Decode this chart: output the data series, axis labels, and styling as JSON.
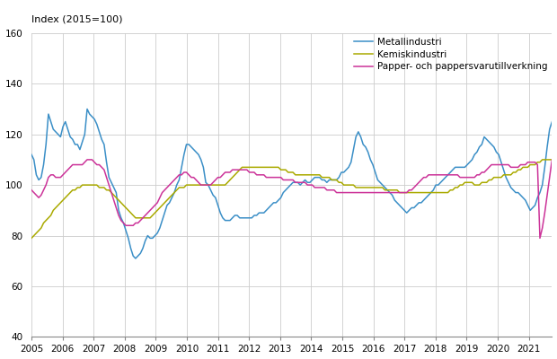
{
  "title": "Index (2015=100)",
  "ylim": [
    40,
    160
  ],
  "yticks": [
    40,
    60,
    80,
    100,
    120,
    140,
    160
  ],
  "legend_labels": [
    "Metallindustri",
    "Kemiskindustri",
    "Papper- och pappersvarutillverkning"
  ],
  "colors": [
    "#3B8FC7",
    "#AAAA00",
    "#CC3399"
  ],
  "linewidth": 1.1,
  "background_color": "#ffffff",
  "grid_color": "#cccccc",
  "xstart": 2005.0,
  "xend": 2021.75,
  "metal": [
    112,
    110,
    104,
    102,
    103,
    108,
    116,
    128,
    125,
    122,
    121,
    120,
    119,
    123,
    125,
    122,
    119,
    118,
    116,
    116,
    114,
    117,
    120,
    130,
    128,
    127,
    126,
    124,
    121,
    118,
    116,
    109,
    103,
    101,
    99,
    97,
    90,
    87,
    85,
    82,
    79,
    75,
    72,
    71,
    72,
    73,
    75,
    78,
    80,
    79,
    79,
    80,
    81,
    83,
    86,
    89,
    92,
    93,
    95,
    97,
    100,
    102,
    107,
    112,
    116,
    116,
    115,
    114,
    113,
    112,
    110,
    107,
    101,
    100,
    98,
    96,
    95,
    92,
    89,
    87,
    86,
    86,
    86,
    87,
    88,
    88,
    87,
    87,
    87,
    87,
    87,
    87,
    88,
    88,
    89,
    89,
    89,
    90,
    91,
    92,
    93,
    93,
    94,
    95,
    97,
    98,
    99,
    100,
    101,
    101,
    101,
    100,
    101,
    102,
    101,
    101,
    102,
    103,
    103,
    103,
    102,
    102,
    101,
    102,
    102,
    102,
    102,
    103,
    105,
    105,
    106,
    107,
    109,
    114,
    119,
    121,
    119,
    116,
    115,
    113,
    110,
    108,
    105,
    102,
    101,
    100,
    99,
    98,
    97,
    96,
    94,
    93,
    92,
    91,
    90,
    89,
    90,
    91,
    91,
    92,
    93,
    93,
    94,
    95,
    96,
    97,
    98,
    100,
    100,
    101,
    102,
    103,
    104,
    105,
    106,
    107,
    107,
    107,
    107,
    107,
    108,
    109,
    110,
    112,
    113,
    115,
    116,
    119,
    118,
    117,
    116,
    115,
    113,
    112,
    109,
    106,
    103,
    101,
    99,
    98,
    97,
    97,
    96,
    95,
    94,
    92,
    90,
    91,
    92,
    95,
    97,
    100,
    107,
    115,
    122,
    125
  ],
  "kemi": [
    79,
    80,
    81,
    82,
    83,
    85,
    86,
    87,
    88,
    90,
    91,
    92,
    93,
    94,
    95,
    96,
    97,
    98,
    98,
    99,
    99,
    100,
    100,
    100,
    100,
    100,
    100,
    100,
    99,
    99,
    99,
    98,
    98,
    97,
    96,
    95,
    94,
    93,
    92,
    91,
    90,
    89,
    88,
    87,
    87,
    87,
    87,
    87,
    87,
    87,
    88,
    89,
    90,
    91,
    92,
    93,
    94,
    95,
    96,
    97,
    98,
    99,
    99,
    99,
    100,
    100,
    100,
    100,
    100,
    100,
    100,
    100,
    100,
    100,
    100,
    100,
    100,
    100,
    100,
    100,
    100,
    101,
    102,
    103,
    104,
    105,
    106,
    107,
    107,
    107,
    107,
    107,
    107,
    107,
    107,
    107,
    107,
    107,
    107,
    107,
    107,
    107,
    107,
    106,
    106,
    106,
    105,
    105,
    105,
    104,
    104,
    104,
    104,
    104,
    104,
    104,
    104,
    104,
    104,
    104,
    103,
    103,
    103,
    103,
    102,
    102,
    102,
    101,
    101,
    100,
    100,
    100,
    100,
    100,
    99,
    99,
    99,
    99,
    99,
    99,
    99,
    99,
    99,
    99,
    99,
    99,
    98,
    98,
    98,
    98,
    98,
    98,
    97,
    97,
    97,
    97,
    97,
    97,
    97,
    97,
    97,
    97,
    97,
    97,
    97,
    97,
    97,
    97,
    97,
    97,
    97,
    97,
    97,
    98,
    98,
    99,
    99,
    100,
    100,
    101,
    101,
    101,
    101,
    100,
    100,
    100,
    101,
    101,
    101,
    102,
    102,
    103,
    103,
    103,
    103,
    104,
    104,
    104,
    104,
    105,
    105,
    106,
    106,
    107,
    107,
    107,
    108,
    108,
    108,
    109,
    109,
    110,
    110,
    110,
    110,
    110
  ],
  "papper": [
    98,
    97,
    96,
    95,
    96,
    98,
    100,
    103,
    104,
    104,
    103,
    103,
    103,
    104,
    105,
    106,
    107,
    108,
    108,
    108,
    108,
    108,
    109,
    110,
    110,
    110,
    109,
    108,
    108,
    107,
    106,
    103,
    100,
    97,
    94,
    91,
    88,
    86,
    85,
    84,
    84,
    84,
    84,
    85,
    85,
    86,
    87,
    88,
    89,
    90,
    91,
    92,
    93,
    95,
    97,
    98,
    99,
    100,
    101,
    102,
    103,
    104,
    104,
    105,
    105,
    104,
    103,
    103,
    102,
    101,
    100,
    100,
    100,
    100,
    100,
    101,
    102,
    103,
    103,
    104,
    105,
    105,
    105,
    106,
    106,
    106,
    106,
    106,
    106,
    106,
    105,
    105,
    105,
    104,
    104,
    104,
    104,
    103,
    103,
    103,
    103,
    103,
    103,
    103,
    102,
    102,
    102,
    102,
    102,
    101,
    101,
    101,
    101,
    101,
    100,
    100,
    100,
    99,
    99,
    99,
    99,
    99,
    98,
    98,
    98,
    98,
    97,
    97,
    97,
    97,
    97,
    97,
    97,
    97,
    97,
    97,
    97,
    97,
    97,
    97,
    97,
    97,
    97,
    97,
    97,
    97,
    97,
    97,
    97,
    97,
    97,
    97,
    97,
    97,
    97,
    97,
    98,
    98,
    99,
    100,
    101,
    102,
    103,
    103,
    104,
    104,
    104,
    104,
    104,
    104,
    104,
    104,
    104,
    104,
    104,
    104,
    104,
    103,
    103,
    103,
    103,
    103,
    103,
    103,
    104,
    104,
    105,
    105,
    106,
    107,
    108,
    108,
    108,
    108,
    108,
    108,
    108,
    108,
    107,
    107,
    107,
    107,
    108,
    108,
    108,
    109,
    109,
    109,
    109,
    108,
    79,
    83,
    89,
    96,
    103,
    110
  ]
}
